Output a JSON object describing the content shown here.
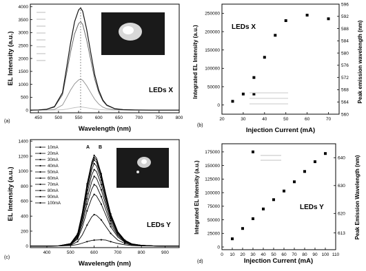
{
  "chart_data": [
    {
      "panel": "(a)",
      "type": "line",
      "xlabel": "Wavelength (nm)",
      "ylabel": "EL Intensity (a.u.)",
      "xlim": [
        430,
        800
      ],
      "ylim": [
        -100,
        4100
      ],
      "xticks": [
        "450",
        "500",
        "550",
        "600",
        "650",
        "700",
        "750",
        "800"
      ],
      "yticks": [
        "0",
        "500",
        "1000",
        "1500",
        "2000",
        "2500",
        "3000",
        "3500",
        "4000"
      ],
      "series_label": "LEDs X",
      "legend_position": "top-left",
      "inset_photo": true,
      "peak_nm": 555,
      "x_values": [
        430,
        450,
        470,
        490,
        510,
        520,
        530,
        540,
        550,
        555,
        560,
        570,
        580,
        590,
        600,
        610,
        620,
        640,
        660,
        690,
        730,
        770,
        800
      ],
      "series": [
        {
          "values": [
            5,
            5,
            5,
            10,
            20,
            40,
            70,
            100,
            120,
            125,
            118,
            95,
            70,
            45,
            28,
            16,
            10,
            5,
            3,
            2,
            2,
            2,
            2
          ]
        },
        {
          "values": [
            5,
            5,
            10,
            30,
            200,
            480,
            780,
            1020,
            1170,
            1200,
            1160,
            950,
            680,
            420,
            240,
            120,
            60,
            20,
            10,
            5,
            3,
            3,
            3
          ]
        },
        {
          "values": [
            5,
            10,
            30,
            120,
            600,
            1400,
            2250,
            2950,
            3350,
            3420,
            3320,
            2720,
            1950,
            1200,
            690,
            360,
            180,
            55,
            20,
            8,
            4,
            3,
            3
          ]
        },
        {
          "values": [
            5,
            10,
            35,
            140,
            680,
            1620,
            2600,
            3420,
            3880,
            3950,
            3830,
            3130,
            2230,
            1370,
            780,
            400,
            200,
            60,
            22,
            9,
            5,
            4,
            4
          ]
        }
      ]
    },
    {
      "panel": "(b)",
      "type": "scatter",
      "xlabel": "Injection Current (mA)",
      "ylabel": "Integrated EL Intensity (a.u.)",
      "y2label": "Peak emission wavelength (nm)",
      "xlim": [
        20,
        75
      ],
      "ylim": [
        -25000,
        275000
      ],
      "y2lim": [
        560,
        596
      ],
      "xticks": [
        "20",
        "30",
        "40",
        "50",
        "60",
        "70"
      ],
      "yticks": [
        "0",
        "50000",
        "100000",
        "150000",
        "200000",
        "250000"
      ],
      "y2ticks": [
        "560",
        "564",
        "568",
        "572",
        "576",
        "580",
        "584",
        "588",
        "592",
        "596"
      ],
      "series_label": "LEDs X",
      "legend_position": "bottom-center",
      "series": [
        {
          "x": [
            25,
            30,
            35,
            35,
            40,
            45,
            50,
            60,
            70
          ],
          "y": [
            10000,
            30000,
            30000,
            75000,
            130000,
            190000,
            230000,
            245000,
            235000
          ]
        }
      ]
    },
    {
      "panel": "(c)",
      "type": "line",
      "xlabel": "Wavelength (nm)",
      "ylabel": "EL Intensity (a.u.)",
      "xlim": [
        330,
        960
      ],
      "ylim": [
        -20,
        1420
      ],
      "xticks": [
        "400",
        "500",
        "600",
        "700",
        "800",
        "900"
      ],
      "yticks": [
        "0",
        "200",
        "400",
        "600",
        "800",
        "1000",
        "1200",
        "1400"
      ],
      "series_label": "LEDs Y",
      "legend_position": "top-left",
      "legend_entries": [
        "10mA",
        "20mA",
        "30mA",
        "40mA",
        "50mA",
        "60mA",
        "70mA",
        "80mA",
        "90mA",
        "100mA"
      ],
      "peak_labels": [
        "A",
        "B"
      ],
      "inset_photo": true,
      "x_values": [
        330,
        400,
        450,
        500,
        530,
        550,
        570,
        590,
        600,
        610,
        630,
        650,
        670,
        700,
        730,
        760,
        800,
        850,
        900,
        960
      ],
      "series": [
        {
          "name": "10mA",
          "values": [
            0,
            0,
            2,
            8,
            20,
            40,
            60,
            75,
            80,
            82,
            85,
            80,
            60,
            35,
            18,
            8,
            3,
            1,
            0,
            0
          ]
        },
        {
          "name": "20mA",
          "values": [
            0,
            0,
            2,
            12,
            60,
            150,
            280,
            390,
            420,
            410,
            350,
            260,
            170,
            80,
            35,
            14,
            5,
            2,
            0,
            0
          ]
        },
        {
          "name": "30mA",
          "values": [
            0,
            0,
            3,
            18,
            95,
            250,
            470,
            640,
            690,
            670,
            560,
            410,
            260,
            120,
            50,
            20,
            7,
            2,
            0,
            0
          ]
        },
        {
          "name": "40mA",
          "values": [
            0,
            0,
            3,
            22,
            110,
            300,
            560,
            760,
            820,
            800,
            660,
            480,
            300,
            140,
            58,
            22,
            8,
            2,
            0,
            0
          ]
        },
        {
          "name": "50mA",
          "values": [
            0,
            0,
            4,
            25,
            125,
            340,
            630,
            860,
            930,
            905,
            750,
            540,
            340,
            155,
            64,
            24,
            9,
            3,
            0,
            0
          ]
        },
        {
          "name": "60mA",
          "values": [
            0,
            0,
            4,
            28,
            140,
            380,
            700,
            950,
            1020,
            995,
            820,
            590,
            370,
            170,
            70,
            26,
            10,
            3,
            0,
            0
          ]
        },
        {
          "name": "70mA",
          "values": [
            0,
            0,
            5,
            30,
            150,
            410,
            750,
            1020,
            1100,
            1070,
            880,
            630,
            395,
            180,
            74,
            28,
            10,
            3,
            0,
            0
          ]
        },
        {
          "name": "80mA",
          "values": [
            0,
            0,
            5,
            32,
            158,
            430,
            790,
            1070,
            1150,
            1120,
            920,
            660,
            410,
            186,
            76,
            29,
            11,
            3,
            0,
            0
          ]
        },
        {
          "name": "90mA",
          "values": [
            0,
            0,
            5,
            33,
            162,
            440,
            810,
            1100,
            1180,
            1150,
            945,
            675,
            420,
            190,
            78,
            29,
            11,
            3,
            0,
            0
          ]
        },
        {
          "name": "100mA",
          "values": [
            0,
            0,
            5,
            34,
            166,
            450,
            830,
            1120,
            1210,
            1175,
            965,
            690,
            430,
            195,
            80,
            30,
            11,
            3,
            0,
            0
          ]
        }
      ]
    },
    {
      "panel": "(d)",
      "type": "scatter",
      "xlabel": "Injection Current (mA)",
      "ylabel": "Integrated EL Intensity (a.u.)",
      "y2label": "Peak Emission Wavelength (nm)",
      "xlim": [
        0,
        110
      ],
      "ylim": [
        -5000,
        190000
      ],
      "y2lim": [
        607,
        645
      ],
      "xticks": [
        "0",
        "10",
        "20",
        "30",
        "40",
        "50",
        "60",
        "70",
        "80",
        "90",
        "100",
        "110"
      ],
      "yticks": [
        "0",
        "25000",
        "50000",
        "75000",
        "100000",
        "125000",
        "150000",
        "175000"
      ],
      "y2ticks": [
        "615",
        "620",
        "625",
        "630",
        "635",
        "640"
      ],
      "y2tick_labels_shown": [
        "613",
        "620",
        "630",
        "640"
      ],
      "series_label": "LEDs Y",
      "legend_position": "top-center",
      "series": [
        {
          "x": [
            10,
            20,
            30,
            30,
            40,
            50,
            60,
            70,
            80,
            90,
            100
          ],
          "y": [
            15000,
            34000,
            52000,
            175000,
            70000,
            87000,
            103000,
            120000,
            139000,
            157000,
            172000
          ]
        }
      ]
    }
  ]
}
